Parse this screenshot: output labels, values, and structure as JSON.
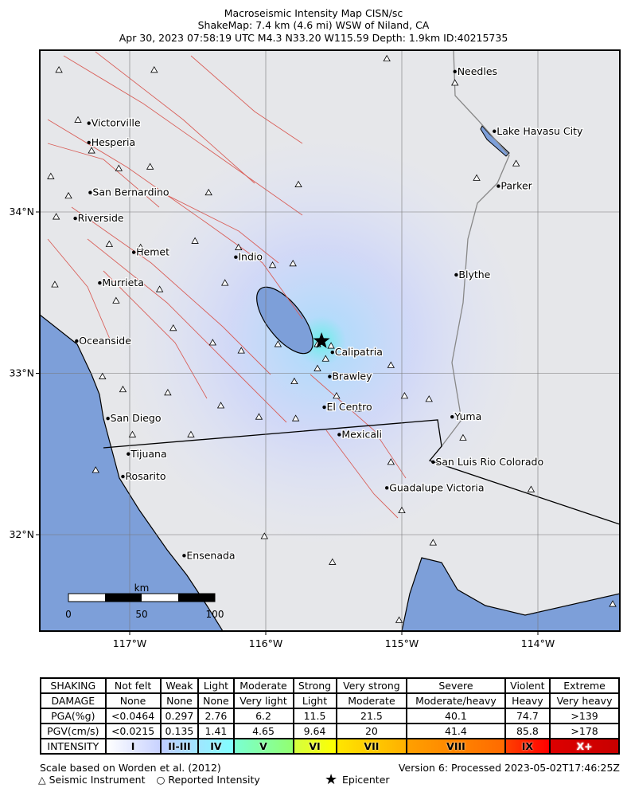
{
  "header": {
    "title": "Macroseismic Intensity Map CISN/sc",
    "subtitle": "ShakeMap: 7.4 km (4.6 mi) WSW of Niland, CA",
    "event_line": "Apr 30, 2023 07:58:19 UTC M4.3 N33.20 W115.59 Depth: 1.9km ID:40215735"
  },
  "map": {
    "lon_ticks": [
      {
        "v": -117,
        "label": "117°W"
      },
      {
        "v": -116,
        "label": "116°W"
      },
      {
        "v": -115,
        "label": "115°W"
      },
      {
        "v": -114,
        "label": "114°W"
      }
    ],
    "lat_ticks": [
      {
        "v": 34,
        "label": "34°N"
      },
      {
        "v": 33,
        "label": "33°N"
      },
      {
        "v": 32,
        "label": "32°N"
      }
    ],
    "epicenter": {
      "lon": -115.59,
      "lat": 33.2
    },
    "cities": [
      {
        "name": "Needles",
        "lon": -114.61,
        "lat": 34.87
      },
      {
        "name": "Lake Havasu City",
        "lon": -114.32,
        "lat": 34.5
      },
      {
        "name": "Victorville",
        "lon": -117.3,
        "lat": 34.55
      },
      {
        "name": "Hesperia",
        "lon": -117.3,
        "lat": 34.43
      },
      {
        "name": "Parker",
        "lon": -114.29,
        "lat": 34.16
      },
      {
        "name": "San Bernardino",
        "lon": -117.29,
        "lat": 34.12
      },
      {
        "name": "Riverside",
        "lon": -117.4,
        "lat": 33.96
      },
      {
        "name": "Hemet",
        "lon": -116.97,
        "lat": 33.75
      },
      {
        "name": "Indio",
        "lon": -116.22,
        "lat": 33.72
      },
      {
        "name": "Murrieta",
        "lon": -117.22,
        "lat": 33.56
      },
      {
        "name": "Blythe",
        "lon": -114.6,
        "lat": 33.61
      },
      {
        "name": "Oceanside",
        "lon": -117.39,
        "lat": 33.2
      },
      {
        "name": "Calipatria",
        "lon": -115.51,
        "lat": 33.13
      },
      {
        "name": "Brawley",
        "lon": -115.53,
        "lat": 32.98
      },
      {
        "name": "El Centro",
        "lon": -115.57,
        "lat": 32.79
      },
      {
        "name": "Yuma",
        "lon": -114.63,
        "lat": 32.73
      },
      {
        "name": "San Diego",
        "lon": -117.16,
        "lat": 32.72
      },
      {
        "name": "Mexicali",
        "lon": -115.46,
        "lat": 32.62
      },
      {
        "name": "Tijuana",
        "lon": -117.01,
        "lat": 32.5
      },
      {
        "name": "San Luis Rio Colorado",
        "lon": -114.77,
        "lat": 32.45
      },
      {
        "name": "Rosarito",
        "lon": -117.05,
        "lat": 32.36
      },
      {
        "name": "Guadalupe Victoria",
        "lon": -115.11,
        "lat": 32.29
      },
      {
        "name": "Ensenada",
        "lon": -116.6,
        "lat": 31.87
      }
    ],
    "stations": [
      [
        -117.52,
        34.88
      ],
      [
        -116.82,
        34.88
      ],
      [
        -115.11,
        34.95
      ],
      [
        -114.61,
        34.8
      ],
      [
        -117.38,
        34.57
      ],
      [
        -117.28,
        34.38
      ],
      [
        -117.58,
        34.22
      ],
      [
        -117.45,
        34.1
      ],
      [
        -117.08,
        34.27
      ],
      [
        -116.85,
        34.28
      ],
      [
        -116.42,
        34.12
      ],
      [
        -115.76,
        34.17
      ],
      [
        -114.45,
        34.21
      ],
      [
        -114.16,
        34.3
      ],
      [
        -117.54,
        33.97
      ],
      [
        -117.15,
        33.8
      ],
      [
        -116.92,
        33.78
      ],
      [
        -116.52,
        33.82
      ],
      [
        -116.2,
        33.78
      ],
      [
        -115.95,
        33.67
      ],
      [
        -115.8,
        33.68
      ],
      [
        -117.55,
        33.55
      ],
      [
        -117.1,
        33.45
      ],
      [
        -116.78,
        33.52
      ],
      [
        -116.3,
        33.56
      ],
      [
        -116.68,
        33.28
      ],
      [
        -116.39,
        33.19
      ],
      [
        -116.18,
        33.14
      ],
      [
        -115.91,
        33.18
      ],
      [
        -115.62,
        33.18
      ],
      [
        -115.56,
        33.09
      ],
      [
        -115.62,
        33.03
      ],
      [
        -115.52,
        33.17
      ],
      [
        -115.79,
        32.95
      ],
      [
        -115.48,
        32.86
      ],
      [
        -115.08,
        33.05
      ],
      [
        -114.98,
        32.86
      ],
      [
        -114.8,
        32.84
      ],
      [
        -115.32,
        32.78
      ],
      [
        -115.78,
        32.72
      ],
      [
        -116.05,
        32.73
      ],
      [
        -116.33,
        32.8
      ],
      [
        -116.72,
        32.88
      ],
      [
        -117.05,
        32.9
      ],
      [
        -117.2,
        32.98
      ],
      [
        -116.98,
        32.62
      ],
      [
        -116.55,
        32.62
      ],
      [
        -115.08,
        32.45
      ],
      [
        -114.55,
        32.6
      ],
      [
        -115.0,
        32.15
      ],
      [
        -114.77,
        31.95
      ],
      [
        -116.01,
        31.99
      ],
      [
        -115.51,
        31.83
      ],
      [
        -117.25,
        32.4
      ],
      [
        -114.05,
        32.28
      ],
      [
        -113.45,
        31.57
      ],
      [
        -115.02,
        31.47
      ]
    ],
    "scale": {
      "unit": "km",
      "labels": [
        "0",
        "50",
        "100"
      ]
    },
    "colors": {
      "ocean": "#7d9fd9",
      "land": "#e9e9ea",
      "fault": "#d9605a",
      "border": "#000000"
    }
  },
  "legend": {
    "rows": [
      {
        "label": "SHAKING",
        "cells": [
          "Not felt",
          "Weak",
          "Light",
          "Moderate",
          "Strong",
          "Very strong",
          "Severe",
          "Violent",
          "Extreme"
        ]
      },
      {
        "label": "DAMAGE",
        "cells": [
          "None",
          "None",
          "None",
          "Very light",
          "Light",
          "Moderate",
          "Moderate/heavy",
          "Heavy",
          "Very heavy"
        ]
      },
      {
        "label": "PGA(%g)",
        "cells": [
          "<0.0464",
          "0.297",
          "2.76",
          "6.2",
          "11.5",
          "21.5",
          "40.1",
          "74.7",
          ">139"
        ]
      },
      {
        "label": "PGV(cm/s)",
        "cells": [
          "<0.0215",
          "0.135",
          "1.41",
          "4.65",
          "9.64",
          "20",
          "41.4",
          "85.8",
          ">178"
        ]
      }
    ],
    "intensity": {
      "label": "INTENSITY",
      "cells": [
        "I",
        "II-III",
        "IV",
        "V",
        "VI",
        "VII",
        "VIII",
        "IX",
        "X+"
      ],
      "colors": [
        "linear-gradient(90deg,#fff,#c8d2ff)",
        "linear-gradient(90deg,#bfccff,#a0e6ff)",
        "linear-gradient(90deg,#a0e6ff,#80ffff)",
        "linear-gradient(90deg,#7affd3,#92ff70)",
        "linear-gradient(90deg,#d4ff40,#ffff00)",
        "linear-gradient(90deg,#ffe600,#ffb000)",
        "linear-gradient(90deg,#ffa000,#ff6a00)",
        "linear-gradient(90deg,#ff4000,#ff0000)",
        "linear-gradient(90deg,#dd0000,#c80000)"
      ]
    },
    "scale_note": "Scale based on Worden et al. (2012)",
    "version": "Version 6: Processed 2023-05-02T17:46:25Z",
    "key_instrument": "Seismic Instrument",
    "key_reported": "Reported Intensity",
    "key_epicenter": "Epicenter"
  }
}
